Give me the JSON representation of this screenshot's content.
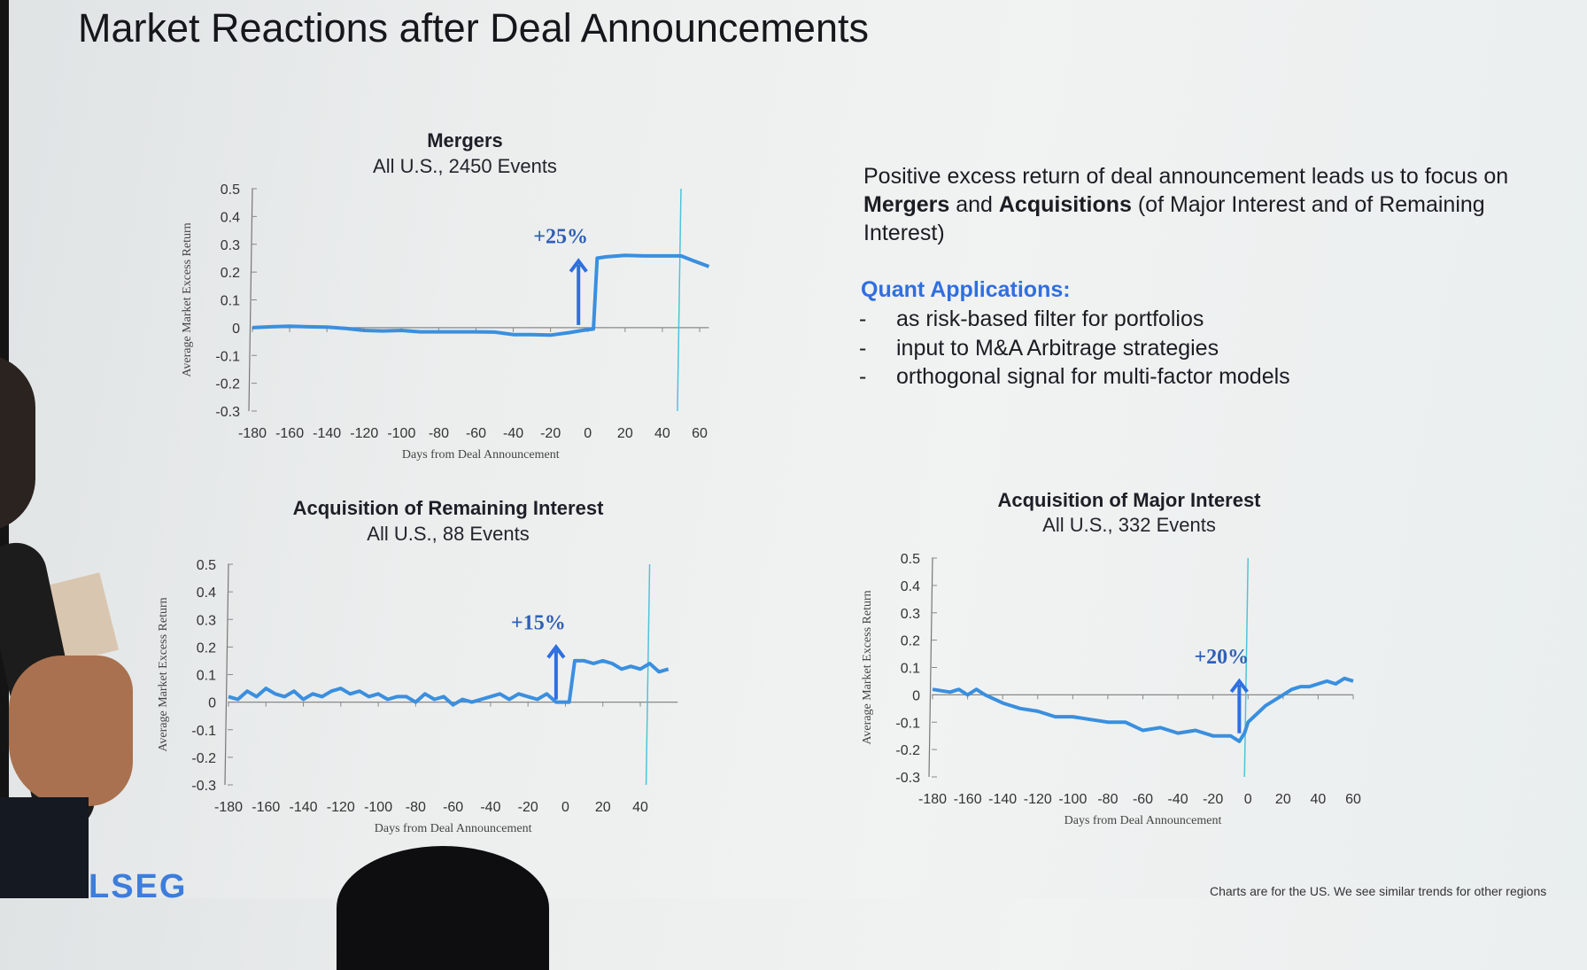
{
  "slide": {
    "title": "Market Reactions after Deal Announcements",
    "text": {
      "p1": "Positive excess return of deal announcement leads us to focus on ",
      "b1": "Mergers",
      "p2": " and ",
      "b2": "Acquisitions",
      "p3": " (of Major Interest and of Remaining Interest)"
    },
    "quant_heading": "Quant Applications:",
    "bullets": [
      "as risk-based filter for portfolios",
      "input to M&A Arbitrage strategies",
      "orthogonal signal for multi-factor models"
    ],
    "bullet_marker": "-",
    "logo": "LSEG",
    "footnote": "Charts are for the US. We see similar trends for other regions"
  },
  "colors": {
    "line": "#3a8fdf",
    "arrow": "#2f6fe0",
    "marker_line": "#4fc3d9",
    "annotation": "#2f5fb8"
  },
  "chart_data": [
    {
      "type": "line",
      "title": "Mergers",
      "subtitle": "All U.S., 2450 Events",
      "xlabel": "Days from Deal Announcement",
      "ylabel": "Average Market Excess Return",
      "xlim": [
        -180,
        65
      ],
      "ylim": [
        -0.3,
        0.5
      ],
      "xticks": [
        -180,
        -160,
        -140,
        -120,
        -100,
        -80,
        -60,
        -40,
        -20,
        0,
        20,
        40,
        60
      ],
      "xtick_labels": [
        "-180",
        "-160",
        "-140",
        "-120",
        "-100",
        "-80",
        "-60",
        "-40",
        "-20",
        "0",
        "20",
        "40",
        "60"
      ],
      "yticks": [
        0.5,
        0.4,
        0.3,
        0.2,
        0.1,
        0,
        -0.1,
        -0.2,
        -0.3
      ],
      "ytick_labels": [
        "0.5",
        "0.4",
        "0.3",
        "0.2",
        "0.1",
        "0",
        "-0.1",
        "-0.2",
        "-0.3"
      ],
      "annotation": "+25%",
      "vline_x": 50,
      "arrow_x": -5,
      "arrow_from": 0.0,
      "arrow_to": 0.24,
      "x": [
        -180,
        -170,
        -160,
        -150,
        -140,
        -130,
        -120,
        -110,
        -100,
        -90,
        -80,
        -70,
        -60,
        -50,
        -40,
        -30,
        -20,
        -10,
        -3,
        3,
        5,
        10,
        20,
        30,
        40,
        50,
        57,
        65
      ],
      "y": [
        0,
        0.003,
        0.005,
        0.003,
        0.002,
        -0.003,
        -0.01,
        -0.012,
        -0.01,
        -0.015,
        -0.015,
        -0.015,
        -0.015,
        -0.016,
        -0.025,
        -0.025,
        -0.027,
        -0.018,
        -0.01,
        -0.005,
        0.25,
        0.255,
        0.26,
        0.258,
        0.258,
        0.258,
        0.24,
        0.22
      ]
    },
    {
      "type": "line",
      "title": "Acquisition of Remaining Interest",
      "subtitle": "All U.S., 88 Events",
      "xlabel": "Days from Deal Announcement",
      "ylabel": "Average Market Excess Return",
      "xlim": [
        -180,
        60
      ],
      "ylim": [
        -0.3,
        0.5
      ],
      "xticks": [
        -180,
        -160,
        -140,
        -120,
        -100,
        -80,
        -60,
        -40,
        -20,
        0,
        20,
        40
      ],
      "xtick_labels": [
        "-180",
        "-160",
        "-140",
        "-120",
        "-100",
        "-80",
        "-60",
        "-40",
        "-20",
        "0",
        "20",
        "40"
      ],
      "yticks": [
        0.5,
        0.4,
        0.3,
        0.2,
        0.1,
        0,
        -0.1,
        -0.2,
        -0.3
      ],
      "ytick_labels": [
        "0.5",
        "0.4",
        "0.3",
        "0.2",
        "0.1",
        "0",
        "-0.1",
        "-0.2",
        "-0.3"
      ],
      "annotation": "+15%",
      "vline_x": 45,
      "arrow_x": -5,
      "arrow_from": 0.0,
      "arrow_to": 0.2,
      "x": [
        -180,
        -175,
        -170,
        -165,
        -160,
        -155,
        -150,
        -145,
        -140,
        -135,
        -130,
        -125,
        -120,
        -115,
        -110,
        -105,
        -100,
        -95,
        -90,
        -85,
        -80,
        -75,
        -70,
        -65,
        -60,
        -55,
        -50,
        -45,
        -40,
        -35,
        -30,
        -25,
        -20,
        -15,
        -10,
        -5,
        0,
        2,
        5,
        10,
        15,
        20,
        25,
        30,
        35,
        40,
        45,
        50,
        55
      ],
      "y": [
        0.02,
        0.01,
        0.04,
        0.02,
        0.05,
        0.03,
        0.02,
        0.04,
        0.01,
        0.03,
        0.02,
        0.04,
        0.05,
        0.03,
        0.04,
        0.02,
        0.03,
        0.01,
        0.02,
        0.02,
        0.0,
        0.03,
        0.01,
        0.02,
        -0.01,
        0.01,
        0.0,
        0.01,
        0.02,
        0.03,
        0.01,
        0.03,
        0.02,
        0.01,
        0.03,
        0.0,
        0.0,
        0.0,
        0.15,
        0.15,
        0.14,
        0.15,
        0.14,
        0.12,
        0.13,
        0.12,
        0.14,
        0.11,
        0.12
      ]
    },
    {
      "type": "line",
      "title": "Acquisition of Major Interest",
      "subtitle": "All U.S., 332 Events",
      "xlabel": "Days from Deal Announcement",
      "ylabel": "Average Market Excess Return",
      "xlim": [
        -180,
        60
      ],
      "ylim": [
        -0.3,
        0.5
      ],
      "xticks": [
        -180,
        -160,
        -140,
        -120,
        -100,
        -80,
        -60,
        -40,
        -20,
        0,
        20,
        40,
        60
      ],
      "xtick_labels": [
        "-180",
        "-160",
        "-140",
        "-120",
        "-100",
        "-80",
        "-60",
        "-40",
        "-20",
        "0",
        "20",
        "40",
        "60"
      ],
      "yticks": [
        0.5,
        0.4,
        0.3,
        0.2,
        0.1,
        0,
        -0.1,
        -0.2,
        -0.3
      ],
      "ytick_labels": [
        "0.5",
        "0.4",
        "0.3",
        "0.2",
        "0.1",
        "0",
        "-0.1",
        "-0.2",
        "-0.3"
      ],
      "annotation": "+20%",
      "vline_x": 0,
      "arrow_x": -5,
      "arrow_from": -0.15,
      "arrow_to": 0.05,
      "x": [
        -180,
        -170,
        -165,
        -160,
        -155,
        -150,
        -140,
        -130,
        -120,
        -110,
        -100,
        -90,
        -80,
        -70,
        -60,
        -50,
        -40,
        -30,
        -20,
        -10,
        -5,
        -2,
        0,
        5,
        10,
        15,
        20,
        25,
        30,
        35,
        40,
        45,
        50,
        55,
        60
      ],
      "y": [
        0.02,
        0.01,
        0.02,
        0.0,
        0.02,
        0.0,
        -0.03,
        -0.05,
        -0.06,
        -0.08,
        -0.08,
        -0.09,
        -0.1,
        -0.1,
        -0.13,
        -0.12,
        -0.14,
        -0.13,
        -0.15,
        -0.15,
        -0.17,
        -0.14,
        -0.1,
        -0.07,
        -0.04,
        -0.02,
        0.0,
        0.02,
        0.03,
        0.03,
        0.04,
        0.05,
        0.04,
        0.06,
        0.05
      ]
    }
  ]
}
